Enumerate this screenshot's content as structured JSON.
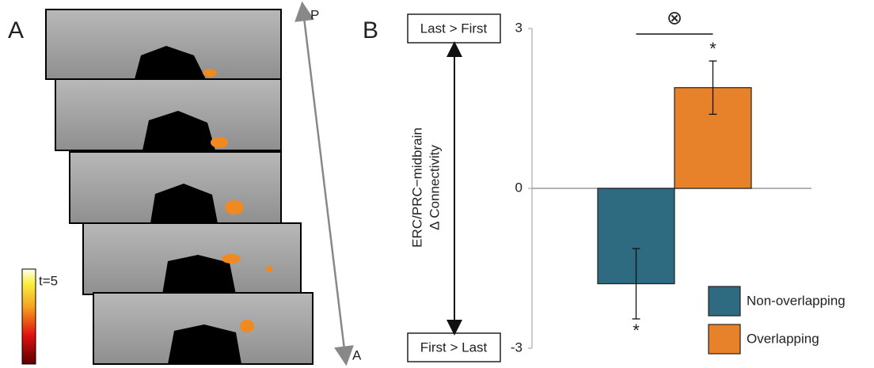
{
  "panel_a": {
    "label": "A",
    "colorbar_label": "t=5",
    "axis_top": "P",
    "axis_bottom": "A"
  },
  "chart_data": {
    "type": "bar",
    "panel_label": "B",
    "y_label_lines": [
      "ERC/PRC−midbrain",
      "Δ Connectivity"
    ],
    "top_box": "Last > First",
    "bottom_box": "First > Last",
    "interaction_label": "⊗",
    "ylim": [
      -3,
      3
    ],
    "yticks": [
      -3,
      0,
      3
    ],
    "series": [
      {
        "name": "Non-overlapping",
        "color": "#2e6a80",
        "values": [
          -1.79
        ],
        "errors": [
          0.66
        ],
        "sig_label": "*"
      },
      {
        "name": "Overlapping",
        "color": "#e8822a",
        "values": [
          1.89
        ],
        "errors": [
          0.5
        ],
        "sig_label": "*"
      }
    ]
  }
}
